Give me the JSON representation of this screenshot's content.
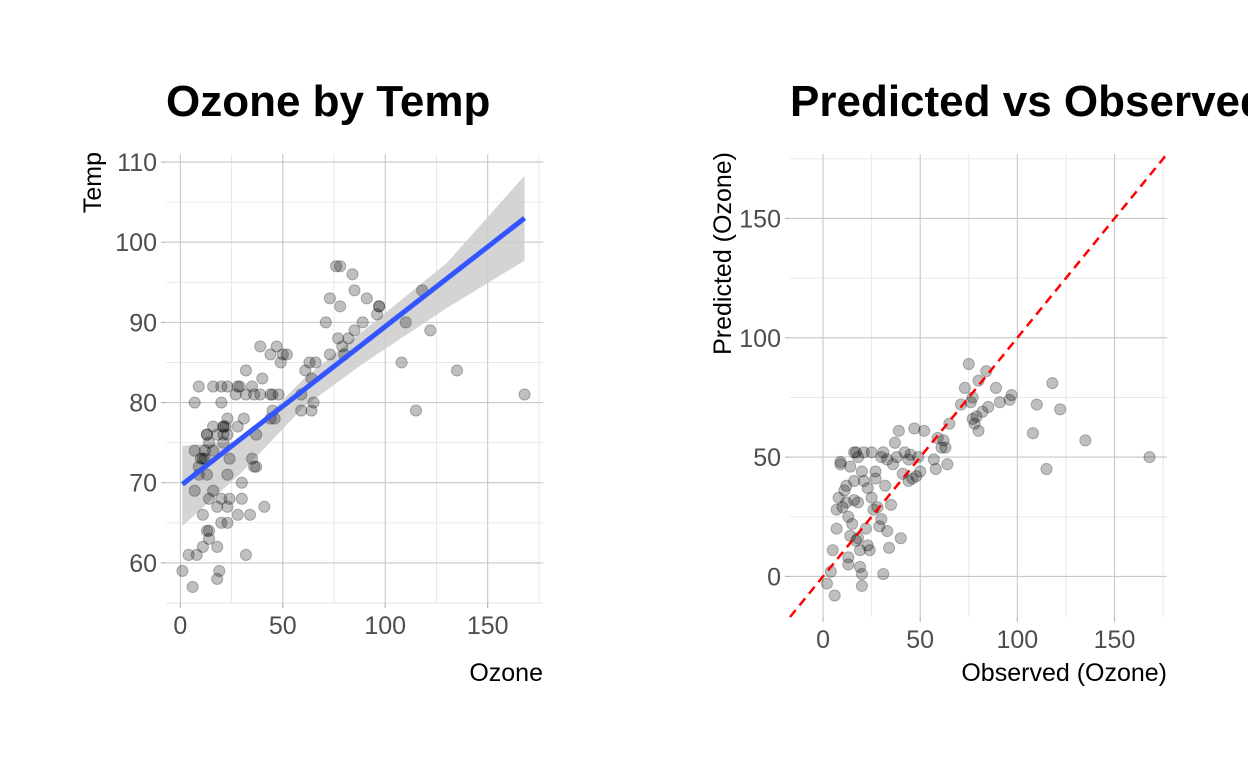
{
  "colors": {
    "background": "#ffffff",
    "point": "#000000",
    "regression_line": "#3355ff",
    "confidence_band": "#cccccc",
    "identity_line": "#ff0000"
  },
  "chart_data": [
    {
      "type": "scatter",
      "title": "Ozone by Temp",
      "xlabel": "Ozone",
      "ylabel": "Temp",
      "xlim": [
        -7,
        177
      ],
      "ylim": [
        55,
        111
      ],
      "xticks": [
        0,
        50,
        100,
        150
      ],
      "xtick_labels": [
        "0",
        "50",
        "100",
        "150"
      ],
      "yticks": [
        60,
        70,
        80,
        90,
        100,
        110
      ],
      "ytick_labels": [
        "60",
        "70",
        "80",
        "90",
        "100",
        "110"
      ],
      "grid": true,
      "legend": "none",
      "point_alpha": 0.25,
      "fit": {
        "type": "linear",
        "color": "#3355ff",
        "start": [
          1,
          69.8
        ],
        "end": [
          168,
          103
        ],
        "band_upper": [
          [
            1,
            74.6
          ],
          [
            30,
            75.2
          ],
          [
            60,
            82.9
          ],
          [
            90,
            89.1
          ],
          [
            130,
            97.4
          ],
          [
            168,
            108.3
          ]
        ],
        "band_lower": [
          [
            1,
            64.6
          ],
          [
            30,
            71.3
          ],
          [
            60,
            79.4
          ],
          [
            90,
            85.0
          ],
          [
            130,
            91.8
          ],
          [
            168,
            97.7
          ]
        ]
      },
      "points": [
        [
          41,
          67
        ],
        [
          36,
          72
        ],
        [
          12,
          74
        ],
        [
          18,
          62
        ],
        [
          28,
          66
        ],
        [
          23,
          65
        ],
        [
          19,
          59
        ],
        [
          8,
          61
        ],
        [
          7,
          74
        ],
        [
          16,
          69
        ],
        [
          11,
          66
        ],
        [
          14,
          68
        ],
        [
          18,
          58
        ],
        [
          14,
          64
        ],
        [
          34,
          66
        ],
        [
          6,
          57
        ],
        [
          30,
          68
        ],
        [
          11,
          62
        ],
        [
          1,
          59
        ],
        [
          11,
          73
        ],
        [
          4,
          61
        ],
        [
          32,
          61
        ],
        [
          23,
          67
        ],
        [
          45,
          81
        ],
        [
          115,
          79
        ],
        [
          37,
          76
        ],
        [
          29,
          82
        ],
        [
          71,
          90
        ],
        [
          39,
          87
        ],
        [
          23,
          82
        ],
        [
          21,
          77
        ],
        [
          37,
          72
        ],
        [
          20,
          65
        ],
        [
          12,
          73
        ],
        [
          13,
          76
        ],
        [
          135,
          84
        ],
        [
          49,
          85
        ],
        [
          32,
          81
        ],
        [
          64,
          83
        ],
        [
          40,
          83
        ],
        [
          77,
          88
        ],
        [
          97,
          92
        ],
        [
          97,
          92
        ],
        [
          85,
          89
        ],
        [
          10,
          73
        ],
        [
          27,
          81
        ],
        [
          7,
          80
        ],
        [
          48,
          81
        ],
        [
          35,
          82
        ],
        [
          61,
          84
        ],
        [
          79,
          87
        ],
        [
          63,
          85
        ],
        [
          16,
          74
        ],
        [
          80,
          86
        ],
        [
          108,
          85
        ],
        [
          20,
          82
        ],
        [
          52,
          86
        ],
        [
          82,
          88
        ],
        [
          50,
          86
        ],
        [
          64,
          79
        ],
        [
          59,
          81
        ],
        [
          39,
          81
        ],
        [
          9,
          82
        ],
        [
          16,
          77
        ],
        [
          78,
          97
        ],
        [
          35,
          73
        ],
        [
          66,
          85
        ],
        [
          122,
          89
        ],
        [
          89,
          90
        ],
        [
          110,
          90
        ],
        [
          44,
          86
        ],
        [
          28,
          82
        ],
        [
          65,
          80
        ],
        [
          22,
          77
        ],
        [
          59,
          79
        ],
        [
          23,
          76
        ],
        [
          31,
          78
        ],
        [
          44,
          78
        ],
        [
          21,
          77
        ],
        [
          9,
          72
        ],
        [
          45,
          79
        ],
        [
          168,
          81
        ],
        [
          73,
          86
        ],
        [
          76,
          97
        ],
        [
          118,
          94
        ],
        [
          84,
          96
        ],
        [
          85,
          94
        ],
        [
          96,
          91
        ],
        [
          78,
          92
        ],
        [
          73,
          93
        ],
        [
          91,
          93
        ],
        [
          47,
          87
        ],
        [
          32,
          84
        ],
        [
          20,
          80
        ],
        [
          23,
          78
        ],
        [
          21,
          75
        ],
        [
          24,
          73
        ],
        [
          44,
          81
        ],
        [
          21,
          76
        ],
        [
          28,
          77
        ],
        [
          9,
          71
        ],
        [
          13,
          71
        ],
        [
          46,
          78
        ],
        [
          18,
          67
        ],
        [
          13,
          76
        ],
        [
          24,
          68
        ],
        [
          16,
          82
        ],
        [
          13,
          64
        ],
        [
          23,
          71
        ],
        [
          36,
          81
        ],
        [
          7,
          69
        ],
        [
          14,
          63
        ],
        [
          30,
          70
        ],
        [
          14,
          75
        ],
        [
          18,
          76
        ],
        [
          20,
          68
        ]
      ]
    },
    {
      "type": "scatter",
      "title": "Predicted vs Observed",
      "xlabel": "Observed (Ozone)",
      "ylabel": "Predicted (Ozone)",
      "xlim": [
        -17,
        177
      ],
      "ylim": [
        -17,
        177
      ],
      "xticks": [
        0,
        50,
        100,
        150
      ],
      "xtick_labels": [
        "0",
        "50",
        "100",
        "150"
      ],
      "yticks": [
        0,
        50,
        100,
        150
      ],
      "ytick_labels": [
        "0",
        "50",
        "100",
        "150"
      ],
      "grid": true,
      "legend": "none",
      "point_alpha": 0.25,
      "reference_line": {
        "slope": 1,
        "intercept": 0,
        "style": "dashed",
        "color": "#ff0000"
      },
      "points": [
        [
          4,
          2
        ],
        [
          6,
          -8
        ],
        [
          5,
          11
        ],
        [
          7,
          20
        ],
        [
          8,
          33
        ],
        [
          9,
          48
        ],
        [
          10,
          29
        ],
        [
          11,
          36
        ],
        [
          12,
          31
        ],
        [
          13,
          8
        ],
        [
          13,
          5
        ],
        [
          14,
          17
        ],
        [
          15,
          22
        ],
        [
          16,
          40
        ],
        [
          17,
          52
        ],
        [
          18,
          16
        ],
        [
          19,
          4
        ],
        [
          20,
          1
        ],
        [
          21,
          52
        ],
        [
          22,
          20
        ],
        [
          23,
          13
        ],
        [
          24,
          11
        ],
        [
          25,
          33
        ],
        [
          26,
          28
        ],
        [
          27,
          44
        ],
        [
          28,
          29
        ],
        [
          29,
          21
        ],
        [
          30,
          24
        ],
        [
          31,
          52
        ],
        [
          32,
          38
        ],
        [
          33,
          19
        ],
        [
          34,
          12
        ],
        [
          35,
          30
        ],
        [
          36,
          47
        ],
        [
          37,
          56
        ],
        [
          38,
          50
        ],
        [
          39,
          61
        ],
        [
          40,
          16
        ],
        [
          41,
          43
        ],
        [
          42,
          52
        ],
        [
          44,
          49
        ],
        [
          45,
          51
        ],
        [
          46,
          41
        ],
        [
          47,
          62
        ],
        [
          48,
          42
        ],
        [
          49,
          50
        ],
        [
          50,
          44
        ],
        [
          52,
          61
        ],
        [
          57,
          49
        ],
        [
          58,
          45
        ],
        [
          59,
          58
        ],
        [
          61,
          54
        ],
        [
          62,
          57
        ],
        [
          63,
          54
        ],
        [
          64,
          47
        ],
        [
          65,
          64
        ],
        [
          71,
          72
        ],
        [
          73,
          79
        ],
        [
          76,
          73
        ],
        [
          77,
          66
        ],
        [
          78,
          64
        ],
        [
          79,
          67
        ],
        [
          80,
          61
        ],
        [
          82,
          69
        ],
        [
          84,
          86
        ],
        [
          85,
          71
        ],
        [
          89,
          79
        ],
        [
          91,
          73
        ],
        [
          96,
          74
        ],
        [
          97,
          76
        ],
        [
          108,
          60
        ],
        [
          110,
          72
        ],
        [
          115,
          45
        ],
        [
          118,
          81
        ],
        [
          122,
          70
        ],
        [
          135,
          57
        ],
        [
          168,
          50
        ],
        [
          16,
          52
        ],
        [
          18,
          50
        ],
        [
          9,
          47
        ],
        [
          20,
          44
        ],
        [
          25,
          52
        ],
        [
          30,
          50
        ],
        [
          33,
          49
        ],
        [
          21,
          40
        ],
        [
          23,
          37
        ],
        [
          12,
          38
        ],
        [
          7,
          28
        ],
        [
          13,
          25
        ],
        [
          18,
          31
        ],
        [
          17,
          15
        ],
        [
          19,
          11
        ],
        [
          2,
          -3
        ],
        [
          20,
          -4
        ],
        [
          31,
          1
        ],
        [
          75,
          89
        ],
        [
          77,
          75
        ],
        [
          80,
          82
        ],
        [
          14,
          46
        ],
        [
          27,
          41
        ],
        [
          44,
          40
        ],
        [
          16,
          32
        ]
      ]
    }
  ]
}
